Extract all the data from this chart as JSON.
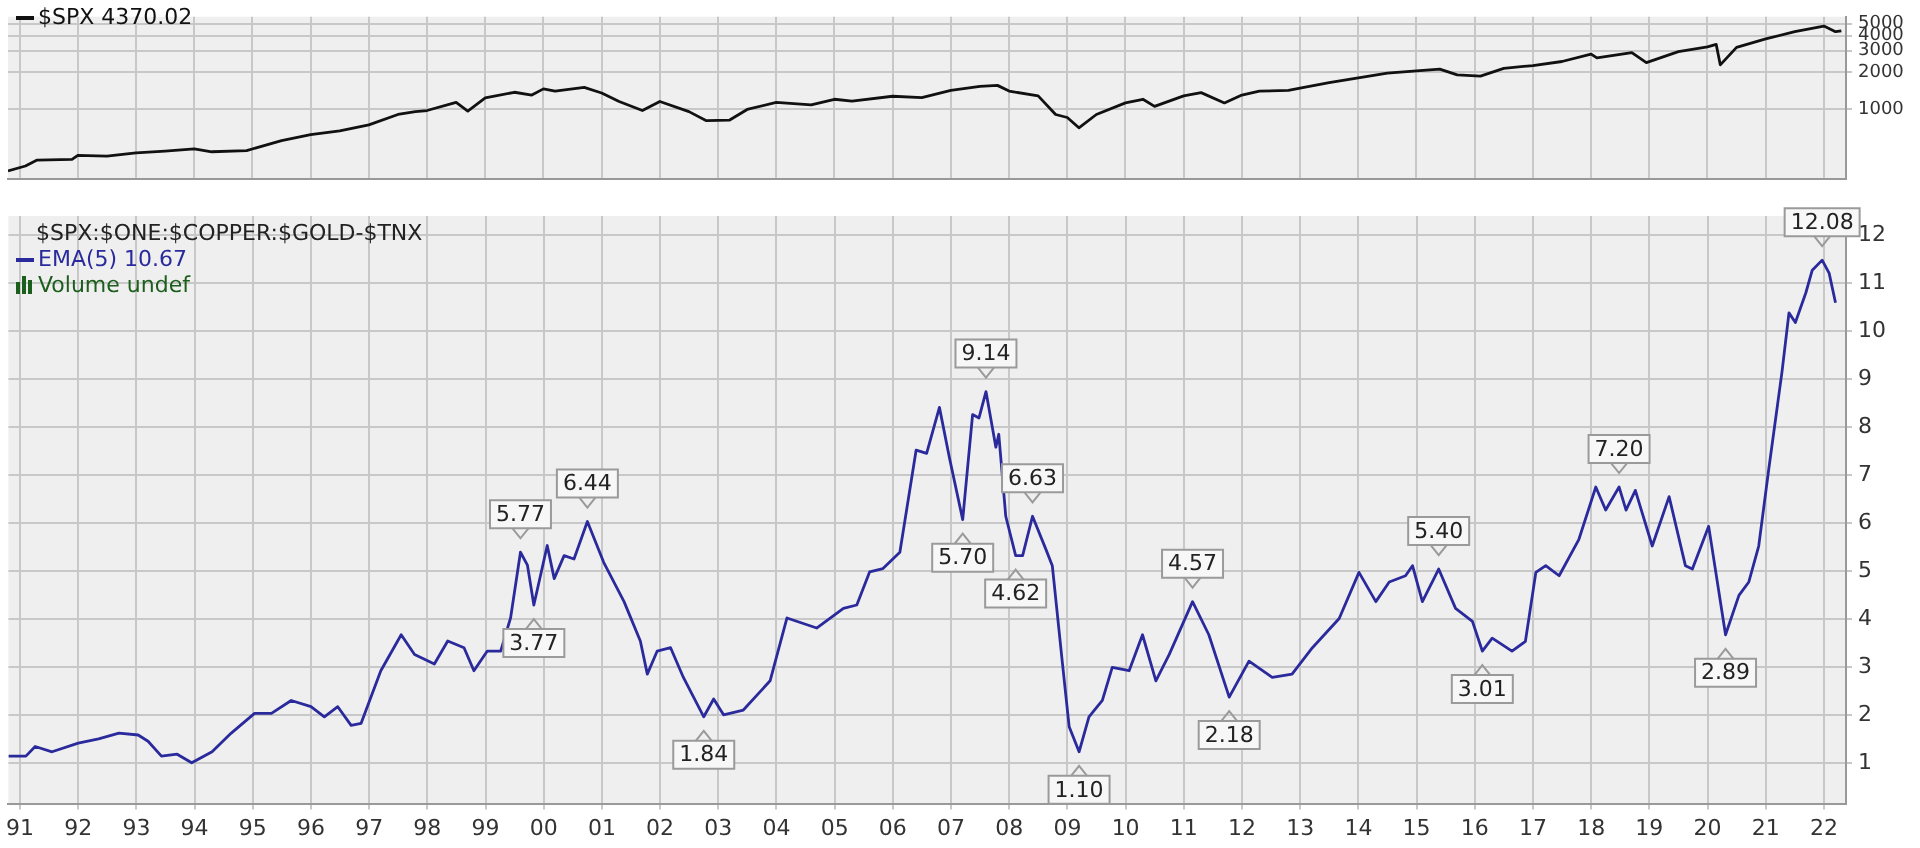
{
  "chart_data": [
    {
      "type": "line",
      "log": "y",
      "grid": true,
      "legend": "top left",
      "tick_labels": "y",
      "xlim": [
        1990.8,
        2022.38
      ],
      "ylim": [
        265,
        5700
      ],
      "yticks": [
        1000,
        2000,
        3000,
        4000,
        5000
      ],
      "xticks": [
        1991,
        1992,
        1993,
        1994,
        1995,
        1996,
        1997,
        1998,
        1999,
        2000,
        2001,
        2002,
        2003,
        2004,
        2005,
        2006,
        2007,
        2008,
        2009,
        2010,
        2011,
        2012,
        2013,
        2014,
        2015,
        2016,
        2017,
        2018,
        2019,
        2020,
        2021,
        2022
      ],
      "x": [
        1990.8,
        1991.1,
        1991.3,
        1991.9,
        1992.0,
        1992.5,
        1993.0,
        1993.5,
        1994.0,
        1994.3,
        1994.9,
        1995.5,
        1996.0,
        1996.5,
        1997.0,
        1997.5,
        1997.8,
        1998.0,
        1998.5,
        1998.7,
        1999.0,
        1999.5,
        1999.8,
        2000.0,
        2000.2,
        2000.7,
        2001.0,
        2001.3,
        2001.7,
        2002.0,
        2002.5,
        2002.8,
        2003.2,
        2003.5,
        2004.0,
        2004.6,
        2005.0,
        2005.3,
        2006.0,
        2006.5,
        2007.0,
        2007.5,
        2007.8,
        2008.0,
        2008.5,
        2008.8,
        2009.0,
        2009.2,
        2009.5,
        2010.0,
        2010.3,
        2010.5,
        2011.0,
        2011.3,
        2011.7,
        2012.0,
        2012.3,
        2012.8,
        2013.0,
        2013.5,
        2014.0,
        2014.5,
        2015.0,
        2015.4,
        2015.7,
        2016.1,
        2016.5,
        2017.0,
        2017.5,
        2018.0,
        2018.1,
        2018.7,
        2018.95,
        2019.5,
        2020.0,
        2020.15,
        2020.22,
        2020.5,
        2021.0,
        2021.5,
        2022.0,
        2022.2,
        2022.3
      ],
      "series": [
        {
          "name": "$SPX 4370.02",
          "color": "#111111",
          "values": [
            310,
            340,
            380,
            385,
            415,
            410,
            435,
            450,
            470,
            445,
            455,
            550,
            615,
            660,
            740,
            900,
            950,
            970,
            1130,
            960,
            1230,
            1370,
            1300,
            1460,
            1400,
            1500,
            1350,
            1150,
            970,
            1150,
            950,
            800,
            810,
            990,
            1130,
            1080,
            1200,
            1160,
            1270,
            1240,
            1420,
            1530,
            1560,
            1400,
            1280,
            900,
            850,
            700,
            900,
            1120,
            1200,
            1050,
            1280,
            1360,
            1120,
            1300,
            1400,
            1420,
            1480,
            1640,
            1800,
            1970,
            2050,
            2120,
            1900,
            1860,
            2150,
            2270,
            2450,
            2820,
            2620,
            2900,
            2400,
            2950,
            3230,
            3380,
            2300,
            3200,
            3750,
            4300,
            4790,
            4300,
            4370
          ]
        }
      ]
    },
    {
      "type": "line",
      "title": "$SPX:$ONE:$COPPER:$GOLD-$TNX",
      "grid": true,
      "legend": "top left",
      "xlim": [
        1990.8,
        2022.38
      ],
      "ylim": [
        0.15,
        12.4
      ],
      "yticks": [
        1,
        2,
        3,
        4,
        5,
        6,
        7,
        8,
        9,
        10,
        11,
        12
      ],
      "xticks": [
        {
          "value": 1991,
          "label": "91"
        },
        {
          "value": 1992,
          "label": "92"
        },
        {
          "value": 1993,
          "label": "93"
        },
        {
          "value": 1994,
          "label": "94"
        },
        {
          "value": 1995,
          "label": "95"
        },
        {
          "value": 1996,
          "label": "96"
        },
        {
          "value": 1997,
          "label": "97"
        },
        {
          "value": 1998,
          "label": "98"
        },
        {
          "value": 1999,
          "label": "99"
        },
        {
          "value": 2000,
          "label": "00"
        },
        {
          "value": 2001,
          "label": "01"
        },
        {
          "value": 2002,
          "label": "02"
        },
        {
          "value": 2003,
          "label": "03"
        },
        {
          "value": 2004,
          "label": "04"
        },
        {
          "value": 2005,
          "label": "05"
        },
        {
          "value": 2006,
          "label": "06"
        },
        {
          "value": 2007,
          "label": "07"
        },
        {
          "value": 2008,
          "label": "08"
        },
        {
          "value": 2009,
          "label": "09"
        },
        {
          "value": 2010,
          "label": "10"
        },
        {
          "value": 2011,
          "label": "11"
        },
        {
          "value": 2012,
          "label": "12"
        },
        {
          "value": 2013,
          "label": "13"
        },
        {
          "value": 2014,
          "label": "14"
        },
        {
          "value": 2015,
          "label": "15"
        },
        {
          "value": 2016,
          "label": "16"
        },
        {
          "value": 2017,
          "label": "17"
        },
        {
          "value": 2018,
          "label": "18"
        },
        {
          "value": 2019,
          "label": "19"
        },
        {
          "value": 2020,
          "label": "20"
        },
        {
          "value": 2021,
          "label": "21"
        },
        {
          "value": 2022,
          "label": "22"
        }
      ],
      "x": [
        1990.8,
        1991.1,
        1991.26,
        1991.55,
        1992.0,
        1992.35,
        1992.7,
        1993.03,
        1993.2,
        1993.43,
        1993.7,
        1993.95,
        1994.3,
        1994.63,
        1995.03,
        1995.32,
        1995.66,
        1996.0,
        1996.23,
        1996.46,
        1996.69,
        1996.86,
        1997.2,
        1997.55,
        1997.78,
        1998.12,
        1998.35,
        1998.63,
        1998.8,
        1999.03,
        1999.26,
        1999.43,
        1999.6,
        1999.72,
        1999.83,
        2000.06,
        2000.18,
        2000.35,
        2000.52,
        2000.75,
        2001.03,
        2001.38,
        2001.66,
        2001.78,
        2001.95,
        2002.18,
        2002.4,
        2002.75,
        2002.92,
        2003.09,
        2003.43,
        2003.89,
        2004.18,
        2004.69,
        2005.15,
        2005.38,
        2005.6,
        2005.83,
        2006.12,
        2006.4,
        2006.58,
        2006.8,
        2006.97,
        2007.2,
        2007.37,
        2007.48,
        2007.6,
        2007.77,
        2007.82,
        2007.94,
        2008.11,
        2008.23,
        2008.4,
        2008.63,
        2008.74,
        2008.91,
        2009.03,
        2009.2,
        2009.37,
        2009.6,
        2009.77,
        2010.06,
        2010.29,
        2010.52,
        2010.75,
        2011.15,
        2011.43,
        2011.78,
        2012.12,
        2012.52,
        2012.86,
        2013.21,
        2013.67,
        2014.01,
        2014.3,
        2014.53,
        2014.81,
        2014.93,
        2015.1,
        2015.38,
        2015.67,
        2015.96,
        2016.13,
        2016.3,
        2016.64,
        2016.87,
        2017.05,
        2017.22,
        2017.45,
        2017.79,
        2018.08,
        2018.25,
        2018.48,
        2018.6,
        2018.76,
        2019.05,
        2019.34,
        2019.62,
        2019.74,
        2020.02,
        2020.31,
        2020.54,
        2020.71,
        2020.88,
        2021.05,
        2021.28,
        2021.4,
        2021.51,
        2021.69,
        2021.8,
        2021.97,
        2022.09,
        2022.2
      ],
      "series": [
        {
          "name": "EMA(5) 10.67",
          "color": "#2a2a9c",
          "values": [
            1.14,
            1.14,
            1.34,
            1.23,
            1.41,
            1.5,
            1.62,
            1.58,
            1.45,
            1.14,
            1.18,
            1.0,
            1.23,
            1.62,
            2.03,
            2.03,
            2.3,
            2.17,
            1.96,
            2.17,
            1.78,
            1.82,
            2.92,
            3.67,
            3.26,
            3.06,
            3.54,
            3.4,
            2.92,
            3.33,
            3.33,
            4.02,
            5.39,
            5.12,
            4.29,
            5.53,
            4.84,
            5.32,
            5.25,
            6.03,
            5.18,
            4.36,
            3.54,
            2.85,
            3.33,
            3.4,
            2.78,
            1.96,
            2.33,
            2.0,
            2.1,
            2.71,
            4.02,
            3.81,
            4.22,
            4.29,
            4.98,
            5.05,
            5.39,
            7.52,
            7.45,
            8.41,
            7.37,
            6.07,
            8.26,
            8.19,
            8.74,
            7.58,
            7.85,
            6.14,
            5.32,
            5.32,
            6.14,
            5.45,
            5.11,
            3.12,
            1.75,
            1.23,
            1.96,
            2.3,
            2.99,
            2.92,
            3.67,
            2.71,
            3.26,
            4.36,
            3.67,
            2.37,
            3.12,
            2.78,
            2.85,
            3.4,
            4.01,
            4.97,
            4.36,
            4.77,
            4.9,
            5.11,
            4.36,
            5.04,
            4.22,
            3.95,
            3.33,
            3.6,
            3.33,
            3.53,
            4.97,
            5.11,
            4.9,
            5.66,
            6.75,
            6.27,
            6.75,
            6.27,
            6.68,
            5.52,
            6.55,
            5.11,
            5.04,
            5.93,
            3.67,
            4.49,
            4.77,
            5.52,
            7.1,
            9.15,
            10.38,
            10.18,
            10.8,
            11.27,
            11.48,
            11.21,
            10.59
          ]
        }
      ],
      "annotations": [
        "Volume undef",
        {
          "text": "5.77",
          "x": 1999.6,
          "y": 5.39
        },
        {
          "text": "3.77",
          "x": 1999.83,
          "y": 4.29
        },
        {
          "text": "6.44",
          "x": 2000.75,
          "y": 6.03
        },
        {
          "text": "1.84",
          "x": 2002.75,
          "y": 1.96
        },
        {
          "text": "9.14",
          "x": 2007.6,
          "y": 8.74
        },
        {
          "text": "5.70",
          "x": 2007.2,
          "y": 6.07
        },
        {
          "text": "6.63",
          "x": 2008.4,
          "y": 6.14
        },
        {
          "text": "4.62",
          "x": 2008.11,
          "y": 5.32
        },
        {
          "text": "1.10",
          "x": 2009.2,
          "y": 1.23
        },
        {
          "text": "4.57",
          "x": 2011.15,
          "y": 4.36
        },
        {
          "text": "2.18",
          "x": 2011.78,
          "y": 2.37
        },
        {
          "text": "5.40",
          "x": 2015.38,
          "y": 5.04
        },
        {
          "text": "3.01",
          "x": 2016.13,
          "y": 3.33
        },
        {
          "text": "7.20",
          "x": 2018.48,
          "y": 6.75
        },
        {
          "text": "2.89",
          "x": 2020.31,
          "y": 3.67
        },
        {
          "text": "12.08",
          "x": 2021.97,
          "y": 11.48
        }
      ]
    }
  ]
}
